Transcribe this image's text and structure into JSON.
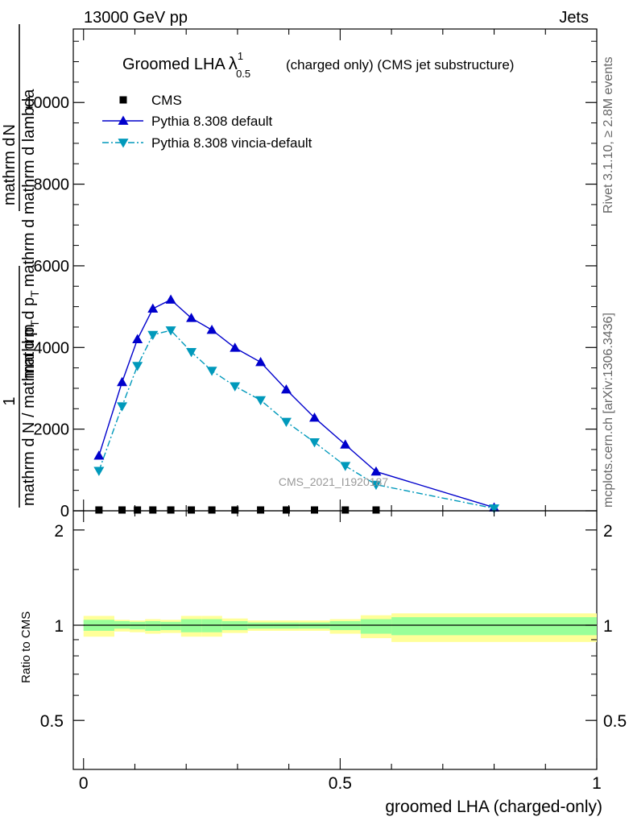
{
  "header": {
    "left": "13000 GeV pp",
    "right": "Jets"
  },
  "side_labels": {
    "rivet": "Rivet 3.1.10, ≥ 2.8M events",
    "mcplots": "mcplots.cern.ch [arXiv:1306.3436]"
  },
  "watermark": "CMS_2021_I1920187",
  "chart_data": [
    {
      "type": "line",
      "title_main": "Groomed LHA",
      "title_lambda": "λ",
      "title_sub": "0.5",
      "title_sup": "1",
      "title_rest": "(charged only) (CMS jet substructure)",
      "ylabel_top_parts": [
        "mathrm d",
        "N"
      ],
      "ylabel_bottom": "mathrm d p",
      "ylabel_bottom_sub": "T",
      "ylabel_bottom_rest": "mathrm d mathrm d lambda",
      "ylabel_prefix_num": "1",
      "ylabel_prefix_den": "mathrm d N / mathrm d p",
      "ylabel_prefix_den_sub": "T",
      "ylim": [
        0,
        11800
      ],
      "xlim": [
        -0.02,
        1.0
      ],
      "yticks": [
        0,
        2000,
        4000,
        6000,
        8000,
        10000
      ],
      "yticklabels": [
        "0",
        "2000",
        "4000",
        "6000",
        "8000",
        "10000"
      ],
      "legend_position": "top-left",
      "series": [
        {
          "name": "CMS",
          "color": "#000000",
          "marker": "square",
          "x": [
            0.03,
            0.075,
            0.105,
            0.135,
            0.17,
            0.21,
            0.25,
            0.295,
            0.345,
            0.395,
            0.45,
            0.51,
            0.57
          ],
          "y": [
            0,
            0,
            0,
            0,
            0,
            0,
            0,
            0,
            0,
            0,
            0,
            0,
            0
          ]
        },
        {
          "name": "Pythia 8.308 default",
          "color": "#0000cc",
          "marker": "triangle-up",
          "dash": "solid",
          "x": [
            0.03,
            0.075,
            0.105,
            0.135,
            0.17,
            0.21,
            0.25,
            0.295,
            0.345,
            0.395,
            0.45,
            0.51,
            0.57,
            0.8
          ],
          "y": [
            1350,
            3150,
            4200,
            4950,
            5170,
            4720,
            4430,
            3990,
            3640,
            2970,
            2280,
            1620,
            960,
            80
          ]
        },
        {
          "name": "Pythia 8.308 vincia-default",
          "color": "#0099bb",
          "marker": "triangle-down",
          "dash": "dashdot",
          "x": [
            0.03,
            0.075,
            0.105,
            0.135,
            0.17,
            0.21,
            0.25,
            0.295,
            0.345,
            0.395,
            0.45,
            0.51,
            0.57,
            0.8
          ],
          "y": [
            980,
            2560,
            3550,
            4310,
            4420,
            3890,
            3430,
            3050,
            2710,
            2180,
            1680,
            1100,
            640,
            60
          ]
        }
      ]
    },
    {
      "type": "area",
      "ylabel": "Ratio to CMS",
      "xlabel": "groomed LHA (charged-only)",
      "xlim": [
        -0.02,
        1.0
      ],
      "ylim": [
        0.35,
        2.3
      ],
      "xticks": [
        0,
        0.5,
        1
      ],
      "xticklabels": [
        "0",
        "0.5",
        "1"
      ],
      "yticks": [
        0.5,
        1,
        2
      ],
      "yticklabels": [
        "0.5",
        "1",
        "2"
      ],
      "reference_line": 1,
      "band_color_inner": "#99ff99",
      "band_color_outer": "#ffff99",
      "bins": [
        {
          "x0": 0.0,
          "x1": 0.06,
          "inner": [
            0.96,
            1.04
          ],
          "outer": [
            0.92,
            1.07
          ]
        },
        {
          "x0": 0.06,
          "x1": 0.09,
          "inner": [
            0.975,
            1.03
          ],
          "outer": [
            0.955,
            1.04
          ]
        },
        {
          "x0": 0.09,
          "x1": 0.12,
          "inner": [
            0.97,
            1.025
          ],
          "outer": [
            0.95,
            1.035
          ]
        },
        {
          "x0": 0.12,
          "x1": 0.15,
          "inner": [
            0.96,
            1.03
          ],
          "outer": [
            0.94,
            1.045
          ]
        },
        {
          "x0": 0.15,
          "x1": 0.19,
          "inner": [
            0.965,
            1.025
          ],
          "outer": [
            0.945,
            1.04
          ]
        },
        {
          "x0": 0.19,
          "x1": 0.23,
          "inner": [
            0.95,
            1.045
          ],
          "outer": [
            0.92,
            1.07
          ]
        },
        {
          "x0": 0.23,
          "x1": 0.27,
          "inner": [
            0.95,
            1.045
          ],
          "outer": [
            0.92,
            1.07
          ]
        },
        {
          "x0": 0.27,
          "x1": 0.32,
          "inner": [
            0.965,
            1.03
          ],
          "outer": [
            0.945,
            1.05
          ]
        },
        {
          "x0": 0.32,
          "x1": 0.37,
          "inner": [
            0.975,
            1.02
          ],
          "outer": [
            0.96,
            1.035
          ]
        },
        {
          "x0": 0.37,
          "x1": 0.42,
          "inner": [
            0.975,
            1.02
          ],
          "outer": [
            0.96,
            1.035
          ]
        },
        {
          "x0": 0.42,
          "x1": 0.48,
          "inner": [
            0.975,
            1.02
          ],
          "outer": [
            0.96,
            1.035
          ]
        },
        {
          "x0": 0.48,
          "x1": 0.54,
          "inner": [
            0.965,
            1.03
          ],
          "outer": [
            0.94,
            1.045
          ]
        },
        {
          "x0": 0.54,
          "x1": 0.6,
          "inner": [
            0.94,
            1.045
          ],
          "outer": [
            0.91,
            1.075
          ]
        },
        {
          "x0": 0.6,
          "x1": 1.0,
          "inner": [
            0.93,
            1.06
          ],
          "outer": [
            0.885,
            1.09
          ]
        }
      ]
    }
  ]
}
